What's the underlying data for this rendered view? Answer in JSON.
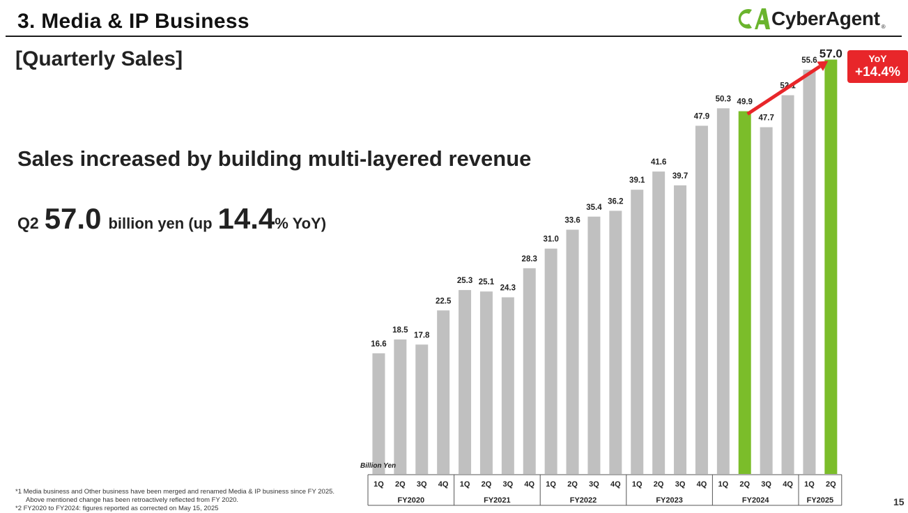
{
  "header": {
    "title": "3. Media & IP Business",
    "logo_text": "CyberAgent",
    "logo_mark": "CA",
    "reg_mark": "®"
  },
  "subtitle": "[Quarterly Sales]",
  "headline": "Sales increased by building multi-layered revenue",
  "q2": {
    "label": "Q2",
    "value": "57.0",
    "unit": "billion yen (up",
    "pct": "14.4",
    "tail": "% YoY)"
  },
  "badge": {
    "label": "YoY",
    "value": "+14.4%"
  },
  "footnotes": [
    "*1  Media business and Other business have been merged and renamed Media & IP business since FY 2025.",
    "Above mentioned change has been retroactively reflected from FY 2020.",
    "*2  FY2020 to FY2024: figures reported as corrected on May 15, 2025"
  ],
  "page_number": "15",
  "colors": {
    "bar": "#c0c0c0",
    "highlight": "#7bbd2a",
    "accent": "#e8262a",
    "logo_green": "#6ab42d"
  },
  "chart_data": {
    "type": "bar",
    "unit_label": "Billion Yen",
    "quarters": [
      "1Q",
      "2Q",
      "3Q",
      "4Q",
      "1Q",
      "2Q",
      "3Q",
      "4Q",
      "1Q",
      "2Q",
      "3Q",
      "4Q",
      "1Q",
      "2Q",
      "3Q",
      "4Q",
      "1Q",
      "2Q",
      "3Q",
      "4Q",
      "1Q",
      "2Q"
    ],
    "fiscal_years": [
      {
        "label": "FY2020",
        "count": 4
      },
      {
        "label": "FY2021",
        "count": 4
      },
      {
        "label": "FY2022",
        "count": 4
      },
      {
        "label": "FY2023",
        "count": 4
      },
      {
        "label": "FY2024",
        "count": 4
      },
      {
        "label": "FY2025",
        "count": 2
      }
    ],
    "values": [
      16.6,
      18.5,
      17.8,
      22.5,
      25.3,
      25.1,
      24.3,
      28.3,
      31.0,
      33.6,
      35.4,
      36.2,
      39.1,
      41.6,
      39.7,
      47.9,
      50.3,
      49.9,
      47.7,
      52.1,
      55.6,
      57.0
    ],
    "labels": [
      "16.6",
      "18.5",
      "17.8",
      "22.5",
      "25.3",
      "25.1",
      "24.3",
      "28.3",
      "31.0",
      "33.6",
      "35.4",
      "36.2",
      "39.1",
      "41.6",
      "39.7",
      "47.9",
      "50.3",
      "49.9",
      "47.7",
      "52.1",
      "55.6",
      "57.0"
    ],
    "highlighted": [
      17,
      21
    ],
    "comparison": {
      "from": 17,
      "to": 21
    }
  }
}
